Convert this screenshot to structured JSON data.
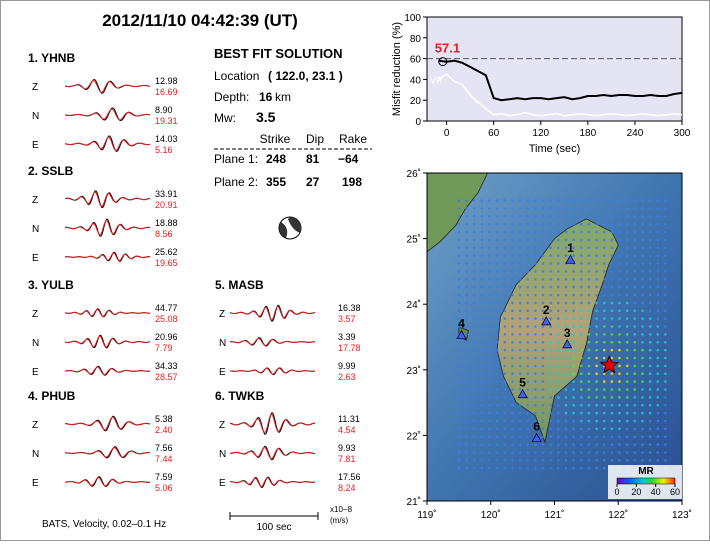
{
  "title": "2012/11/10  04:42:39 (UT)",
  "stations": [
    {
      "label": "1.  YHNB",
      "components": [
        {
          "name": "Z",
          "obs": "12.98",
          "syn": "16.69"
        },
        {
          "name": "N",
          "obs": "8.90",
          "syn": "19.31"
        },
        {
          "name": "E",
          "obs": "14.03",
          "syn": "5.16"
        }
      ]
    },
    {
      "label": "2.  SSLB",
      "components": [
        {
          "name": "Z",
          "obs": "33.91",
          "syn": "20.91"
        },
        {
          "name": "N",
          "obs": "18.88",
          "syn": "8.56"
        },
        {
          "name": "E",
          "obs": "25.62",
          "syn": "19.65"
        }
      ]
    },
    {
      "label": "3.  YULB",
      "components": [
        {
          "name": "Z",
          "obs": "44.77",
          "syn": "25.08"
        },
        {
          "name": "N",
          "obs": "20.96",
          "syn": "7.79"
        },
        {
          "name": "E",
          "obs": "34.33",
          "syn": "28.57"
        }
      ]
    },
    {
      "label": "4.  PHUB",
      "components": [
        {
          "name": "Z",
          "obs": "5.38",
          "syn": "2.40"
        },
        {
          "name": "N",
          "obs": "7.56",
          "syn": "7.44"
        },
        {
          "name": "E",
          "obs": "7.59",
          "syn": "5.06"
        }
      ]
    },
    {
      "label": "5.  MASB",
      "components": [
        {
          "name": "Z",
          "obs": "16.38",
          "syn": "3.57"
        },
        {
          "name": "N",
          "obs": "3.39",
          "syn": "17.78"
        },
        {
          "name": "E",
          "obs": "9.99",
          "syn": "2.63"
        }
      ]
    },
    {
      "label": "6.  TWKB",
      "components": [
        {
          "name": "Z",
          "obs": "11.31",
          "syn": "4.54"
        },
        {
          "name": "N",
          "obs": "9.93",
          "syn": "7.81"
        },
        {
          "name": "E",
          "obs": "17.56",
          "syn": "8.24"
        }
      ]
    }
  ],
  "solution": {
    "heading": "BEST FIT SOLUTION",
    "location_label": "Location",
    "location": "( 122.0,  23.1 )",
    "depth_label": "Depth:",
    "depth": "16",
    "depth_unit": "km",
    "mw_label": "Mw:",
    "mw": "3.5",
    "columns": [
      "Strike",
      "Dip",
      "Rake"
    ],
    "planes": [
      {
        "label": "Plane 1:",
        "values": [
          "248",
          "81",
          "−64"
        ]
      },
      {
        "label": "Plane 2:",
        "values": [
          "355",
          "27",
          "198"
        ]
      }
    ]
  },
  "footer": {
    "filter": "BATS, Velocity, 0.02–0.1 Hz",
    "scale": "100 sec",
    "units": "x10−8",
    "units2": "(m/s)"
  },
  "chart_data": {
    "type": "line",
    "ylabel": "Misfit reduction (%)",
    "xlabel": "Time (sec)",
    "x": [
      -10,
      0,
      10,
      20,
      30,
      40,
      50,
      60,
      70,
      80,
      90,
      100,
      110,
      120,
      130,
      140,
      150,
      160,
      170,
      180,
      190,
      200,
      210,
      220,
      230,
      240,
      250,
      260,
      270,
      280,
      290,
      300
    ],
    "series": [
      {
        "name": "MR",
        "color": "#000000",
        "values": [
          58,
          57,
          58,
          56,
          52,
          48,
          44,
          22,
          20,
          21,
          22,
          21,
          22,
          22,
          21,
          22,
          23,
          21,
          22,
          24,
          24,
          25,
          24,
          25,
          25,
          24,
          24,
          25,
          24,
          24,
          26,
          27
        ]
      },
      {
        "name": "VR",
        "color": "#ffffff",
        "values": [
          40,
          45,
          38,
          35,
          25,
          18,
          12,
          6,
          7,
          5,
          6,
          8,
          6,
          5,
          6,
          7,
          5,
          6,
          7,
          6,
          5,
          6,
          7,
          6,
          5,
          6,
          7,
          6,
          5,
          6,
          7,
          6
        ]
      }
    ],
    "annotation": {
      "value": 57.1,
      "label": "57.1",
      "color": "#e02020"
    },
    "ref_line": 60,
    "xlim": [
      -25,
      300
    ],
    "xticks": [
      0,
      60,
      120,
      180,
      240,
      300
    ],
    "ylim": [
      0,
      100
    ],
    "yticks": [
      0,
      20,
      40,
      60,
      80,
      100
    ]
  },
  "map": {
    "xlim": [
      119,
      123
    ],
    "ylim": [
      21,
      26
    ],
    "xticks": [
      {
        "value": 119,
        "label": "119˚"
      },
      {
        "value": 120,
        "label": "120˚"
      },
      {
        "value": 121,
        "label": "121˚"
      },
      {
        "value": 122,
        "label": "122˚"
      },
      {
        "value": 123,
        "label": "123˚"
      }
    ],
    "yticks": [
      {
        "value": 21,
        "label": "21˚"
      },
      {
        "value": 22,
        "label": "22˚"
      },
      {
        "value": 23,
        "label": "23˚"
      },
      {
        "value": 24,
        "label": "24˚"
      },
      {
        "value": 25,
        "label": "25˚"
      },
      {
        "value": 26,
        "label": "26˚"
      }
    ],
    "stations": [
      {
        "label": "1",
        "lon": 121.25,
        "lat": 24.67
      },
      {
        "label": "2",
        "lon": 120.87,
        "lat": 23.73
      },
      {
        "label": "3",
        "lon": 121.2,
        "lat": 23.38
      },
      {
        "label": "4",
        "lon": 119.54,
        "lat": 23.52
      },
      {
        "label": "5",
        "lon": 120.5,
        "lat": 22.62
      },
      {
        "label": "6",
        "lon": 120.72,
        "lat": 21.95
      }
    ],
    "epicenter": {
      "lon": 121.86,
      "lat": 23.07
    },
    "colorbar": {
      "title": "MR",
      "ticks": [
        0,
        20,
        40,
        60
      ]
    }
  }
}
